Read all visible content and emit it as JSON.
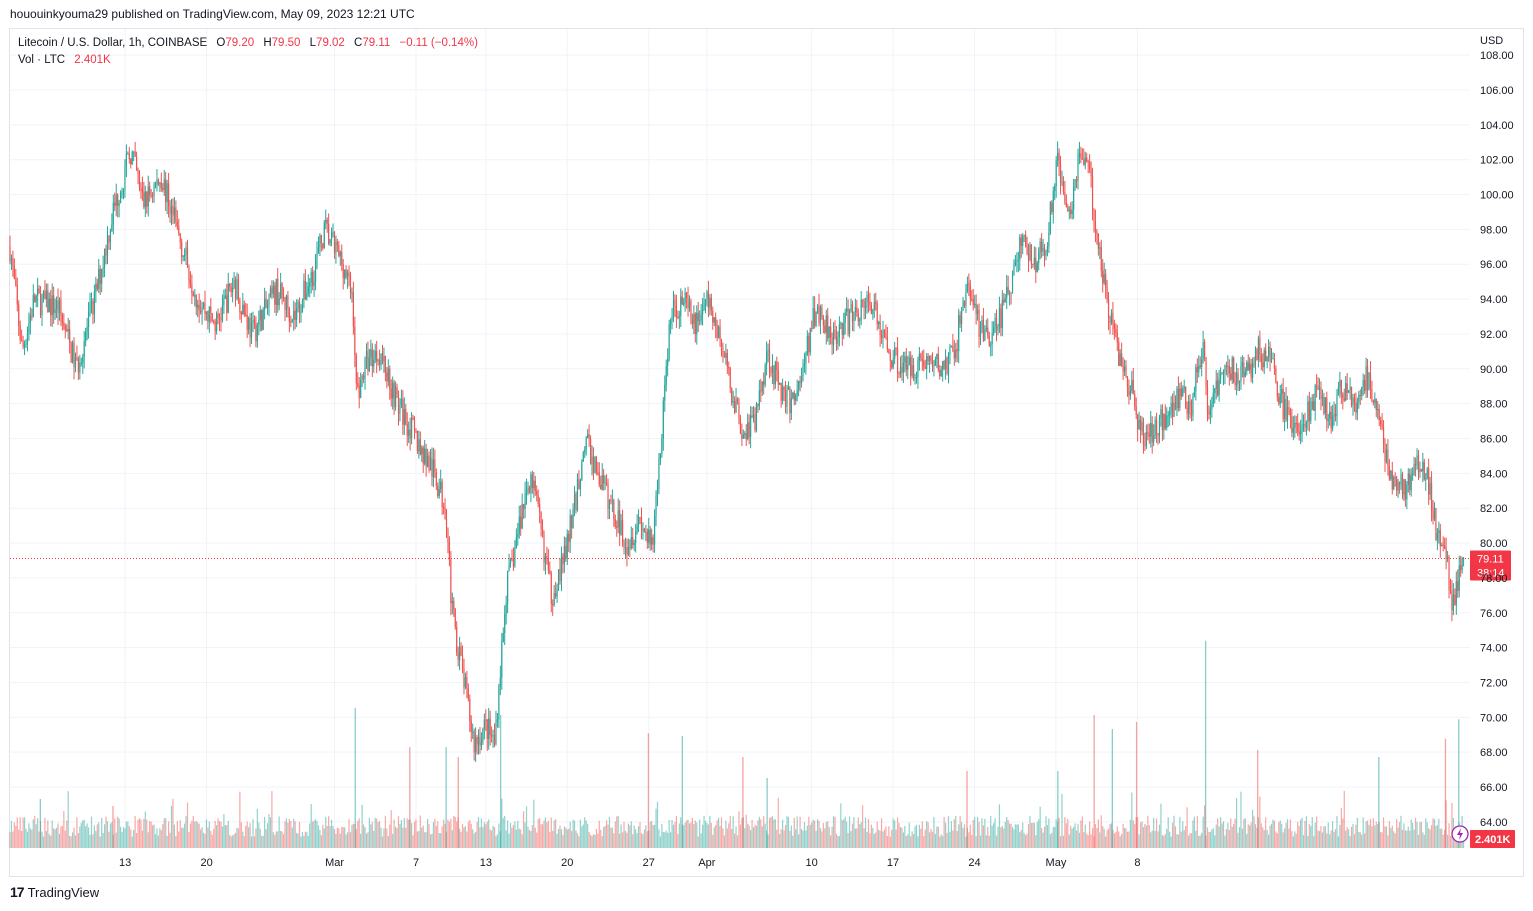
{
  "header": {
    "published_line": "hououinkyouma29 published on TradingView.com, May 09, 2023 12:21 UTC"
  },
  "legend": {
    "symbol": "Litecoin / U.S. Dollar, 1h, COINBASE",
    "open_label": "O",
    "open": "79.20",
    "high_label": "H",
    "high": "79.50",
    "low_label": "L",
    "low": "79.02",
    "close_label": "C",
    "close": "79.11",
    "change": "−0.11 (−0.14%)",
    "volume_label": "Vol · LTC",
    "volume": "2.401K"
  },
  "footer": {
    "brand": "TradingView",
    "logo": "17"
  },
  "colors": {
    "up": "#26a69a",
    "down": "#ef5350",
    "last_price_bg": "#f23645",
    "grid": "#f0f3fa"
  },
  "chart_data": {
    "type": "candlestick",
    "symbol": "LTC/USD",
    "interval": "1h",
    "currency_label": "USD",
    "ylim": [
      62.5,
      109.5
    ],
    "y_ticks": [
      "64.00",
      "66.00",
      "68.00",
      "70.00",
      "72.00",
      "74.00",
      "76.00",
      "78.00",
      "80.00",
      "82.00",
      "84.00",
      "86.00",
      "88.00",
      "90.00",
      "92.00",
      "94.00",
      "96.00",
      "98.00",
      "100.00",
      "102.00",
      "104.00",
      "106.00",
      "108.00"
    ],
    "x_ticks": [
      "13",
      "20",
      "Mar",
      "7",
      "13",
      "20",
      "27",
      "Apr",
      "10",
      "17",
      "24",
      "May",
      "8"
    ],
    "price_path": [
      {
        "x": 0.0,
        "y": 97.0
      },
      {
        "x": 1.0,
        "y": 91.0
      },
      {
        "x": 2.0,
        "y": 94.0
      },
      {
        "x": 4.0,
        "y": 93.5
      },
      {
        "x": 5.5,
        "y": 90.0
      },
      {
        "x": 7.0,
        "y": 94.0
      },
      {
        "x": 8.5,
        "y": 99.0
      },
      {
        "x": 10.0,
        "y": 102.5
      },
      {
        "x": 11.0,
        "y": 99.5
      },
      {
        "x": 12.5,
        "y": 101.0
      },
      {
        "x": 14.0,
        "y": 97.5
      },
      {
        "x": 15.5,
        "y": 94.0
      },
      {
        "x": 17.0,
        "y": 92.5
      },
      {
        "x": 18.5,
        "y": 95.0
      },
      {
        "x": 20.0,
        "y": 92.0
      },
      {
        "x": 22.0,
        "y": 94.5
      },
      {
        "x": 23.5,
        "y": 93.0
      },
      {
        "x": 25.0,
        "y": 95.5
      },
      {
        "x": 26.0,
        "y": 98.0
      },
      {
        "x": 27.5,
        "y": 96.0
      },
      {
        "x": 28.3,
        "y": 94.0
      },
      {
        "x": 28.6,
        "y": 88.5
      },
      {
        "x": 29.5,
        "y": 90.5
      },
      {
        "x": 30.5,
        "y": 91.0
      },
      {
        "x": 32.0,
        "y": 88.0
      },
      {
        "x": 33.5,
        "y": 86.0
      },
      {
        "x": 35.0,
        "y": 84.0
      },
      {
        "x": 36.0,
        "y": 82.0
      },
      {
        "x": 36.5,
        "y": 76.0
      },
      {
        "x": 37.5,
        "y": 72.0
      },
      {
        "x": 38.3,
        "y": 68.5
      },
      {
        "x": 39.3,
        "y": 69.5
      },
      {
        "x": 40.0,
        "y": 68.5
      },
      {
        "x": 40.5,
        "y": 73.0
      },
      {
        "x": 41.0,
        "y": 77.5
      },
      {
        "x": 41.5,
        "y": 79.0
      },
      {
        "x": 42.3,
        "y": 82.0
      },
      {
        "x": 43.0,
        "y": 84.0
      },
      {
        "x": 44.0,
        "y": 80.0
      },
      {
        "x": 44.7,
        "y": 77.0
      },
      {
        "x": 45.7,
        "y": 79.0
      },
      {
        "x": 46.6,
        "y": 82.0
      },
      {
        "x": 47.5,
        "y": 86.0
      },
      {
        "x": 48.5,
        "y": 84.0
      },
      {
        "x": 49.7,
        "y": 82.0
      },
      {
        "x": 51.0,
        "y": 80.0
      },
      {
        "x": 52.0,
        "y": 81.5
      },
      {
        "x": 53.0,
        "y": 79.5
      },
      {
        "x": 53.8,
        "y": 86.5
      },
      {
        "x": 54.5,
        "y": 93.0
      },
      {
        "x": 55.5,
        "y": 94.0
      },
      {
        "x": 56.5,
        "y": 92.5
      },
      {
        "x": 57.5,
        "y": 94.0
      },
      {
        "x": 58.5,
        "y": 92.0
      },
      {
        "x": 59.5,
        "y": 89.0
      },
      {
        "x": 60.5,
        "y": 86.5
      },
      {
        "x": 61.5,
        "y": 87.0
      },
      {
        "x": 62.5,
        "y": 91.0
      },
      {
        "x": 63.5,
        "y": 89.0
      },
      {
        "x": 64.5,
        "y": 88.0
      },
      {
        "x": 65.5,
        "y": 90.0
      },
      {
        "x": 66.5,
        "y": 93.5
      },
      {
        "x": 68.0,
        "y": 92.0
      },
      {
        "x": 69.5,
        "y": 93.0
      },
      {
        "x": 71.0,
        "y": 94.0
      },
      {
        "x": 72.5,
        "y": 91.0
      },
      {
        "x": 74.0,
        "y": 90.0
      },
      {
        "x": 75.5,
        "y": 90.5
      },
      {
        "x": 77.0,
        "y": 90.0
      },
      {
        "x": 78.0,
        "y": 91.0
      },
      {
        "x": 79.0,
        "y": 95.0
      },
      {
        "x": 80.0,
        "y": 92.5
      },
      {
        "x": 81.0,
        "y": 91.5
      },
      {
        "x": 82.5,
        "y": 94.5
      },
      {
        "x": 83.5,
        "y": 97.5
      },
      {
        "x": 84.5,
        "y": 96.0
      },
      {
        "x": 85.5,
        "y": 97.0
      },
      {
        "x": 86.5,
        "y": 102.0
      },
      {
        "x": 87.5,
        "y": 99.0
      },
      {
        "x": 88.3,
        "y": 102.5
      },
      {
        "x": 89.0,
        "y": 101.5
      },
      {
        "x": 89.5,
        "y": 99.0
      },
      {
        "x": 90.5,
        "y": 94.0
      },
      {
        "x": 91.5,
        "y": 91.0
      },
      {
        "x": 92.5,
        "y": 89.0
      },
      {
        "x": 93.5,
        "y": 86.0
      },
      {
        "x": 94.5,
        "y": 86.5
      },
      {
        "x": 95.5,
        "y": 87.5
      },
      {
        "x": 96.5,
        "y": 88.5
      },
      {
        "x": 97.5,
        "y": 88.0
      },
      {
        "x": 98.5,
        "y": 91.5
      },
      {
        "x": 98.9,
        "y": 86.5
      },
      {
        "x": 99.5,
        "y": 89.0
      },
      {
        "x": 100.5,
        "y": 90.0
      },
      {
        "x": 102.0,
        "y": 89.5
      },
      {
        "x": 103.0,
        "y": 91.0
      },
      {
        "x": 104.0,
        "y": 90.5
      },
      {
        "x": 105.0,
        "y": 88.0
      },
      {
        "x": 106.0,
        "y": 86.5
      },
      {
        "x": 107.0,
        "y": 87.5
      },
      {
        "x": 108.0,
        "y": 88.5
      },
      {
        "x": 109.0,
        "y": 87.0
      },
      {
        "x": 110.0,
        "y": 89.0
      },
      {
        "x": 111.0,
        "y": 88.0
      },
      {
        "x": 112.0,
        "y": 89.5
      },
      {
        "x": 113.0,
        "y": 87.0
      },
      {
        "x": 114.0,
        "y": 84.0
      },
      {
        "x": 115.0,
        "y": 83.0
      },
      {
        "x": 116.0,
        "y": 84.5
      },
      {
        "x": 117.0,
        "y": 83.5
      },
      {
        "x": 117.7,
        "y": 81.0
      },
      {
        "x": 118.5,
        "y": 80.0
      },
      {
        "x": 119.0,
        "y": 76.5
      },
      {
        "x": 119.5,
        "y": 77.5
      },
      {
        "x": 120.0,
        "y": 79.11
      }
    ],
    "volume_spikes": [
      {
        "x": 2.5,
        "v": 0.35
      },
      {
        "x": 8.5,
        "v": 0.3
      },
      {
        "x": 28.5,
        "v": 1.0
      },
      {
        "x": 33.0,
        "v": 0.72
      },
      {
        "x": 36.0,
        "v": 0.72
      },
      {
        "x": 37.0,
        "v": 0.65
      },
      {
        "x": 40.5,
        "v": 0.95
      },
      {
        "x": 52.7,
        "v": 0.82
      },
      {
        "x": 55.5,
        "v": 0.8
      },
      {
        "x": 60.5,
        "v": 0.65
      },
      {
        "x": 62.5,
        "v": 0.5
      },
      {
        "x": 79.0,
        "v": 0.55
      },
      {
        "x": 86.5,
        "v": 0.55
      },
      {
        "x": 89.5,
        "v": 0.95
      },
      {
        "x": 91.0,
        "v": 0.85
      },
      {
        "x": 93.0,
        "v": 0.9
      },
      {
        "x": 98.7,
        "v": 1.48
      },
      {
        "x": 103.0,
        "v": 0.7
      },
      {
        "x": 113.0,
        "v": 0.65
      },
      {
        "x": 118.5,
        "v": 0.78
      },
      {
        "x": 119.6,
        "v": 0.92
      }
    ],
    "last_price": "79.11",
    "countdown": "38:14",
    "last_volume": "2.401K"
  }
}
